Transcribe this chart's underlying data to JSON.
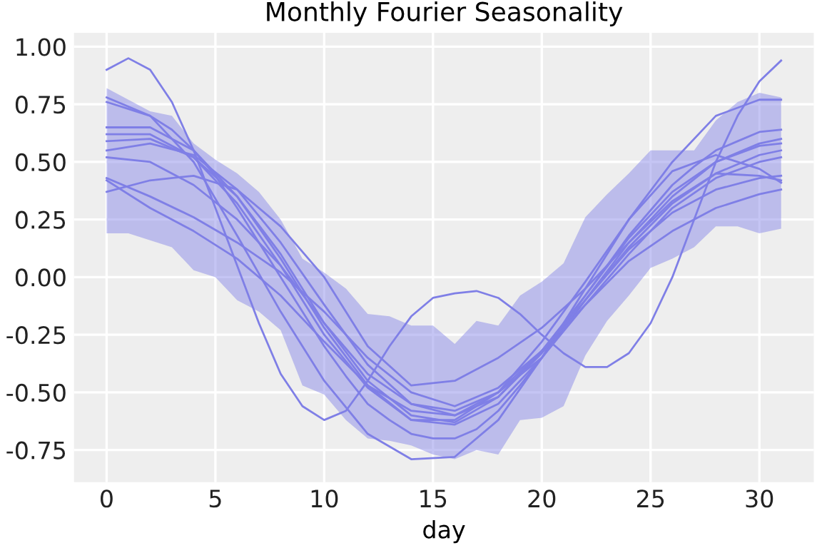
{
  "chart_data": {
    "type": "line",
    "title": "Monthly Fourier Seasonality",
    "xlabel": "day",
    "grid": true,
    "xlim": [
      -1.5,
      32.5
    ],
    "ylim": [
      -0.89,
      1.06
    ],
    "xticks": [
      0,
      5,
      10,
      15,
      20,
      25,
      30
    ],
    "yticks": [
      {
        "value": -0.75,
        "label": "-0.75"
      },
      {
        "value": -0.5,
        "label": "-0.50"
      },
      {
        "value": -0.25,
        "label": "-0.25"
      },
      {
        "value": 0,
        "label": "0.00"
      },
      {
        "value": 0.25,
        "label": "0.25"
      },
      {
        "value": 0.5,
        "label": "0.50"
      },
      {
        "value": 0.75,
        "label": "0.75"
      },
      {
        "value": 1,
        "label": "1.00"
      }
    ],
    "series": [
      {
        "color": "#7f7fe6",
        "x": [
          0,
          1,
          2,
          3,
          4,
          5,
          6,
          7,
          8,
          9,
          10,
          11,
          12,
          13,
          14,
          15,
          16,
          17,
          18,
          19,
          20,
          21,
          22,
          23,
          24,
          25,
          26,
          27,
          28,
          29,
          30,
          31
        ],
        "values": [
          0.76,
          0.73,
          0.7,
          0.64,
          0.55,
          0.44,
          0.3,
          0.15,
          0.0,
          -0.15,
          -0.3,
          -0.43,
          -0.55,
          -0.62,
          -0.68,
          -0.7,
          -0.7,
          -0.66,
          -0.58,
          -0.47,
          -0.35,
          -0.21,
          -0.08,
          0.05,
          0.18,
          0.29,
          0.4,
          0.48,
          0.55,
          0.59,
          0.63,
          0.64
        ],
        "lower": [
          0.19,
          0.19,
          0.16,
          0.13,
          0.03,
          0.0,
          -0.1,
          -0.15,
          -0.23,
          -0.47,
          -0.51,
          -0.62,
          -0.7,
          -0.71,
          -0.73,
          -0.77,
          -0.79,
          -0.75,
          -0.77,
          -0.62,
          -0.61,
          -0.56,
          -0.34,
          -0.19,
          -0.08,
          0.04,
          0.08,
          0.13,
          0.22,
          0.22,
          0.19,
          0.21
        ],
        "upper": [
          0.82,
          0.77,
          0.72,
          0.7,
          0.58,
          0.51,
          0.45,
          0.37,
          0.25,
          0.08,
          0.02,
          -0.05,
          -0.16,
          -0.17,
          -0.21,
          -0.21,
          -0.29,
          -0.19,
          -0.21,
          -0.08,
          -0.02,
          0.06,
          0.26,
          0.36,
          0.45,
          0.55,
          0.55,
          0.55,
          0.68,
          0.76,
          0.8,
          0.78
        ]
      },
      {
        "color": "#7f7fe6",
        "x": [
          0,
          1,
          2,
          3,
          4,
          5,
          6,
          7,
          8,
          9,
          10,
          11,
          12,
          13,
          14,
          15,
          16,
          17,
          18,
          19,
          20,
          21,
          22,
          23,
          24,
          25,
          26,
          27,
          28,
          29,
          30,
          31
        ],
        "values": [
          0.9,
          0.95,
          0.9,
          0.76,
          0.55,
          0.3,
          0.05,
          -0.2,
          -0.42,
          -0.56,
          -0.62,
          -0.58,
          -0.45,
          -0.3,
          -0.17,
          -0.09,
          -0.07,
          -0.06,
          -0.09,
          -0.16,
          -0.25,
          -0.33,
          -0.39,
          -0.39,
          -0.33,
          -0.2,
          0.0,
          0.25,
          0.5,
          0.7,
          0.85,
          0.94
        ]
      },
      {
        "color": "#7f7fe6",
        "x": [
          0,
          2,
          4,
          6,
          8,
          10,
          12,
          14,
          16,
          18,
          20,
          22,
          24,
          26,
          28,
          30,
          31
        ],
        "values": [
          0.78,
          0.7,
          0.5,
          0.18,
          -0.15,
          -0.45,
          -0.68,
          -0.79,
          -0.78,
          -0.62,
          -0.35,
          -0.05,
          0.25,
          0.5,
          0.7,
          0.77,
          0.77
        ]
      },
      {
        "color": "#7f7fe6",
        "x": [
          0,
          2,
          4,
          6,
          8,
          10,
          12,
          14,
          16,
          18,
          20,
          22,
          24,
          26,
          28,
          30,
          31
        ],
        "values": [
          0.65,
          0.65,
          0.55,
          0.35,
          0.08,
          -0.22,
          -0.47,
          -0.62,
          -0.64,
          -0.55,
          -0.35,
          -0.1,
          0.15,
          0.35,
          0.5,
          0.58,
          0.6
        ]
      },
      {
        "color": "#7f7fe6",
        "x": [
          0,
          2,
          4,
          6,
          8,
          10,
          12,
          14,
          16,
          18,
          20,
          22,
          24,
          26,
          28,
          30,
          31
        ],
        "values": [
          0.62,
          0.62,
          0.52,
          0.32,
          0.05,
          -0.25,
          -0.48,
          -0.62,
          -0.62,
          -0.5,
          -0.28,
          -0.02,
          0.25,
          0.46,
          0.53,
          0.47,
          0.41
        ]
      },
      {
        "color": "#7f7fe6",
        "x": [
          0,
          2,
          4,
          6,
          8,
          10,
          12,
          14,
          16,
          18,
          20,
          22,
          24,
          26,
          28,
          30,
          31
        ],
        "values": [
          0.59,
          0.6,
          0.52,
          0.35,
          0.1,
          -0.2,
          -0.45,
          -0.6,
          -0.63,
          -0.52,
          -0.32,
          -0.08,
          0.17,
          0.37,
          0.5,
          0.57,
          0.58
        ]
      },
      {
        "color": "#7f7fe6",
        "x": [
          0,
          2,
          4,
          6,
          8,
          10,
          12,
          14,
          16,
          18,
          20,
          22,
          24,
          26,
          28,
          30,
          31
        ],
        "values": [
          0.55,
          0.58,
          0.53,
          0.38,
          0.15,
          -0.12,
          -0.38,
          -0.55,
          -0.6,
          -0.52,
          -0.33,
          -0.1,
          0.13,
          0.32,
          0.45,
          0.53,
          0.55
        ]
      },
      {
        "color": "#7f7fe6",
        "x": [
          0,
          2,
          4,
          6,
          8,
          10,
          12,
          14,
          16,
          18,
          20,
          22,
          24,
          26,
          28,
          30,
          31
        ],
        "values": [
          0.52,
          0.5,
          0.4,
          0.25,
          0.05,
          -0.2,
          -0.42,
          -0.55,
          -0.58,
          -0.5,
          -0.35,
          -0.12,
          0.1,
          0.3,
          0.43,
          0.5,
          0.52
        ]
      },
      {
        "color": "#7f7fe6",
        "x": [
          0,
          2,
          4,
          6,
          8,
          10,
          12,
          14,
          16,
          18,
          20,
          22,
          24,
          26,
          28,
          30,
          31
        ],
        "values": [
          0.37,
          0.42,
          0.44,
          0.38,
          0.22,
          0.0,
          -0.3,
          -0.47,
          -0.45,
          -0.35,
          -0.22,
          -0.05,
          0.15,
          0.33,
          0.45,
          0.44,
          0.42
        ]
      },
      {
        "color": "#7f7fe6",
        "x": [
          0,
          2,
          4,
          6,
          8,
          10,
          12,
          14,
          16,
          18,
          20,
          22,
          24,
          26,
          28,
          30,
          31
        ],
        "values": [
          0.43,
          0.35,
          0.26,
          0.15,
          0.02,
          -0.15,
          -0.35,
          -0.5,
          -0.56,
          -0.48,
          -0.32,
          -0.12,
          0.07,
          0.2,
          0.3,
          0.36,
          0.38
        ]
      },
      {
        "color": "#7f7fe6",
        "x": [
          0,
          2,
          4,
          6,
          8,
          10,
          12,
          14,
          16,
          18,
          20,
          22,
          24,
          26,
          28,
          30,
          31
        ],
        "values": [
          0.42,
          0.3,
          0.2,
          0.08,
          -0.08,
          -0.28,
          -0.47,
          -0.58,
          -0.6,
          -0.5,
          -0.32,
          -0.1,
          0.12,
          0.28,
          0.38,
          0.43,
          0.44
        ]
      }
    ]
  }
}
